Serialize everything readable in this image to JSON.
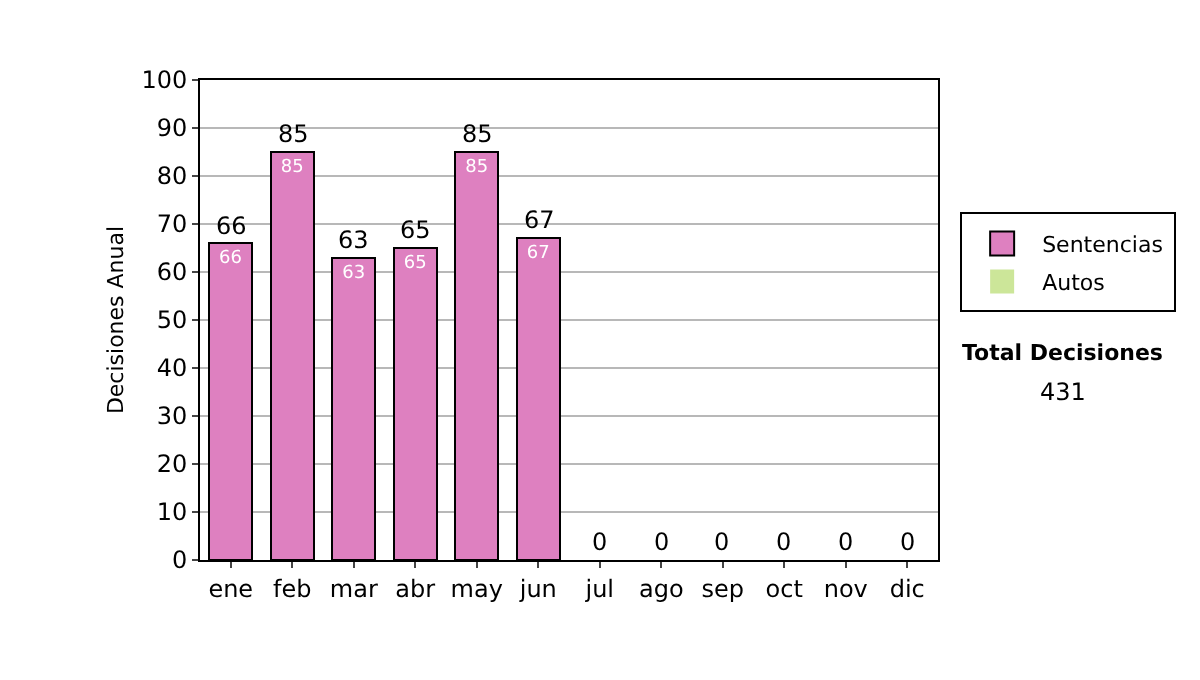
{
  "chart_data": {
    "type": "bar",
    "stacked": true,
    "ylabel": "Decisiones Anual",
    "categories": [
      "ene",
      "feb",
      "mar",
      "abr",
      "may",
      "jun",
      "jul",
      "ago",
      "sep",
      "oct",
      "nov",
      "dic"
    ],
    "series": [
      {
        "name": "Sentencias",
        "color": "#de80c0",
        "values": [
          66,
          85,
          63,
          65,
          85,
          67,
          0,
          0,
          0,
          0,
          0,
          0
        ],
        "value_labels": [
          "66",
          "85",
          "63",
          "65",
          "85",
          "67",
          null,
          null,
          null,
          null,
          null,
          null
        ]
      },
      {
        "name": "Autos",
        "color": "#cce699",
        "values": [
          0,
          0,
          0,
          0,
          0,
          0,
          0,
          0,
          0,
          0,
          0,
          0
        ]
      }
    ],
    "totals": [
      "66",
      "85",
      "63",
      "65",
      "85",
      "67",
      "0",
      "0",
      "0",
      "0",
      "0",
      "0"
    ],
    "ylim": [
      0,
      100
    ],
    "yticks": [
      0,
      10,
      20,
      30,
      40,
      50,
      60,
      70,
      80,
      90,
      100
    ],
    "grid": "y",
    "legend": "right",
    "annotations": [
      "Total Decisiones",
      "431"
    ]
  }
}
